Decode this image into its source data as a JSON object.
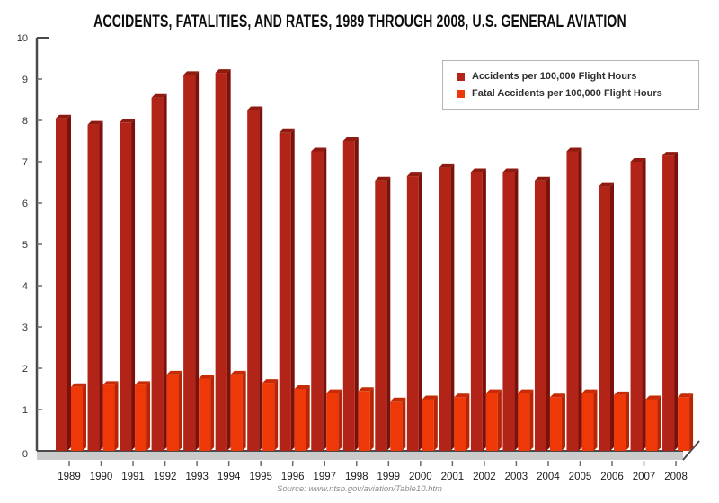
{
  "style_colors": {
    "axis": "#4a4a4a",
    "tick": "#6b6b6b",
    "floor_fill": "#cbcbcb",
    "title_text": "#0d0d0d",
    "axis_label_text": "#333333",
    "legend_border": "#b4b4b4",
    "source_text": "#8c8c8c"
  },
  "chart_data": {
    "type": "bar",
    "style": "3d-bars",
    "title": "ACCIDENTS, FATALITIES, AND RATES, 1989 THROUGH 2008, U.S. GENERAL AVIATION",
    "source": "Source: www.ntsb.gov/aviation/Table10.htm",
    "categories": [
      "1989",
      "1990",
      "1991",
      "1992",
      "1993",
      "1994",
      "1995",
      "1996",
      "1997",
      "1998",
      "1999",
      "2000",
      "2001",
      "2002",
      "2003",
      "2004",
      "2005",
      "2006",
      "2007",
      "2008"
    ],
    "series": [
      {
        "name": "Accidents per 100,000 Flight Hours",
        "color": "#b22417",
        "color_side": "#7a110b",
        "color_top": "#8f1a10",
        "values": [
          8.05,
          7.9,
          7.95,
          8.55,
          9.1,
          9.15,
          8.25,
          7.7,
          7.25,
          7.5,
          6.55,
          6.65,
          6.85,
          6.75,
          6.75,
          6.55,
          7.25,
          6.4,
          7.0,
          7.15
        ]
      },
      {
        "name": "Fatal Accidents per 100,000 Flight Hours",
        "color": "#ee3808",
        "color_side": "#b52506",
        "color_top": "#c62b06",
        "values": [
          1.55,
          1.6,
          1.6,
          1.85,
          1.75,
          1.85,
          1.65,
          1.5,
          1.4,
          1.45,
          1.2,
          1.25,
          1.3,
          1.4,
          1.4,
          1.3,
          1.4,
          1.35,
          1.25,
          1.3
        ]
      }
    ],
    "ylim": [
      0,
      10
    ],
    "yticks": [
      0,
      1,
      2,
      3,
      4,
      5,
      6,
      7,
      8,
      9,
      10
    ],
    "grid": false,
    "legend_position": "top-right"
  }
}
